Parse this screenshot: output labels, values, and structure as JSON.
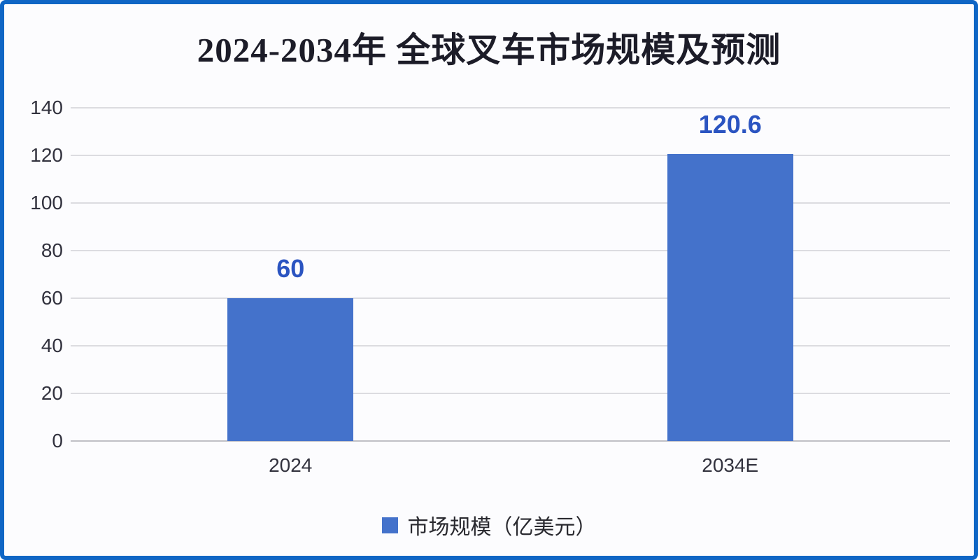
{
  "chart_data": {
    "type": "bar",
    "title": "2024-2034年 全球叉车市场规模及预测",
    "categories": [
      "2024",
      "2034E"
    ],
    "values": [
      60,
      120.6
    ],
    "value_labels": [
      "60",
      "120.6"
    ],
    "ylim": [
      0,
      140
    ],
    "yticks": [
      0,
      20,
      40,
      60,
      80,
      100,
      120,
      140
    ],
    "grid": true,
    "legend": "市场规模（亿美元）",
    "legend_position": "bottom",
    "xlabel": "",
    "ylabel": ""
  },
  "colors": {
    "frame_border": "#0F66C5",
    "background": "#FCFCFE",
    "gridline": "#DCDCE0",
    "axis_line": "#C0C0C6",
    "bar": "#4472CB",
    "data_label": "#2B54C1",
    "title_text": "#1C1C28",
    "tick_text": "#32323E"
  }
}
